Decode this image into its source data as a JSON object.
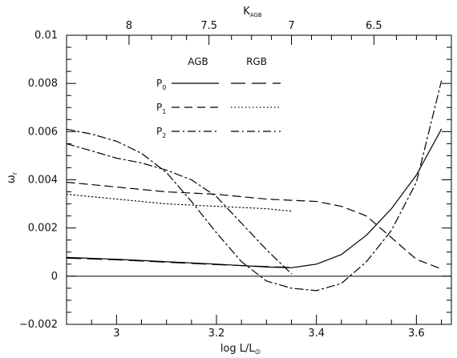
{
  "chart_data": {
    "type": "line",
    "xlabel": {
      "main": "log L/L",
      "sub": "⊙"
    },
    "ylabel": {
      "main": "ω",
      "sub": "r"
    },
    "top_axis_label": {
      "main": "K",
      "sub": "AGB"
    },
    "xlim": [
      2.9,
      3.67
    ],
    "ylim": [
      -0.002,
      0.01
    ],
    "x_ticks": [
      3.0,
      3.2,
      3.4,
      3.6
    ],
    "x_tick_labels": [
      "3",
      "3.2",
      "3.4",
      "3.6"
    ],
    "y_ticks": [
      -0.002,
      0.0,
      0.002,
      0.004,
      0.006,
      0.008,
      0.01
    ],
    "y_tick_labels": [
      "−0.002",
      "0",
      "0.002",
      "0.004",
      "0.006",
      "0.008",
      "0.01"
    ],
    "top_ticks": [
      {
        "x": 3.025,
        "label": "8"
      },
      {
        "x": 3.185,
        "label": "7.5"
      },
      {
        "x": 3.35,
        "label": "7"
      },
      {
        "x": 3.515,
        "label": "6.5"
      }
    ],
    "legend": {
      "column_titles": [
        "AGB",
        "RGB"
      ],
      "rows": [
        {
          "main": "P",
          "sub": "0"
        },
        {
          "main": "P",
          "sub": "1"
        },
        {
          "main": "P",
          "sub": "2"
        }
      ]
    },
    "zero_line": 0,
    "series": [
      {
        "group": "AGB",
        "mode": "P0",
        "dash": "solid",
        "points": [
          [
            2.9,
            0.00078
          ],
          [
            3.0,
            0.0007
          ],
          [
            3.1,
            0.0006
          ],
          [
            3.2,
            0.0005
          ],
          [
            3.3,
            0.00038
          ],
          [
            3.35,
            0.00035
          ],
          [
            3.4,
            0.0005
          ],
          [
            3.45,
            0.0009
          ],
          [
            3.5,
            0.0017
          ],
          [
            3.55,
            0.0028
          ],
          [
            3.6,
            0.0042
          ],
          [
            3.65,
            0.0061
          ]
        ]
      },
      {
        "group": "AGB",
        "mode": "P1",
        "dash": "long-dash",
        "points": [
          [
            2.9,
            0.0039
          ],
          [
            3.0,
            0.0037
          ],
          [
            3.1,
            0.0035
          ],
          [
            3.2,
            0.0034
          ],
          [
            3.3,
            0.0032
          ],
          [
            3.4,
            0.0031
          ],
          [
            3.45,
            0.0029
          ],
          [
            3.5,
            0.0025
          ],
          [
            3.55,
            0.0016
          ],
          [
            3.6,
            0.0007
          ],
          [
            3.65,
            0.0003
          ]
        ]
      },
      {
        "group": "AGB",
        "mode": "P2",
        "dash": "dash-dot",
        "points": [
          [
            2.9,
            0.0061
          ],
          [
            2.95,
            0.0059
          ],
          [
            3.0,
            0.0056
          ],
          [
            3.05,
            0.0051
          ],
          [
            3.1,
            0.0043
          ],
          [
            3.15,
            0.0031
          ],
          [
            3.2,
            0.0018
          ],
          [
            3.25,
            0.0006
          ],
          [
            3.3,
            -0.0002
          ],
          [
            3.35,
            -0.0005
          ],
          [
            3.4,
            -0.0006
          ],
          [
            3.45,
            -0.0003
          ],
          [
            3.5,
            0.0006
          ],
          [
            3.55,
            0.0019
          ],
          [
            3.6,
            0.0039
          ],
          [
            3.65,
            0.0081
          ]
        ]
      },
      {
        "group": "RGB",
        "mode": "P0",
        "dash": "long-dash-gap",
        "points": [
          [
            2.9,
            0.00075
          ],
          [
            3.0,
            0.00068
          ],
          [
            3.1,
            0.00058
          ],
          [
            3.2,
            0.00048
          ],
          [
            3.3,
            0.0004
          ],
          [
            3.35,
            0.00036
          ]
        ]
      },
      {
        "group": "RGB",
        "mode": "P1",
        "dash": "dotted",
        "points": [
          [
            2.9,
            0.0034
          ],
          [
            3.0,
            0.0032
          ],
          [
            3.1,
            0.003
          ],
          [
            3.2,
            0.0029
          ],
          [
            3.3,
            0.0028
          ],
          [
            3.35,
            0.0027
          ]
        ]
      },
      {
        "group": "RGB",
        "mode": "P2",
        "dash": "dash-dot",
        "points": [
          [
            2.9,
            0.0055
          ],
          [
            2.95,
            0.0052
          ],
          [
            3.0,
            0.0049
          ],
          [
            3.05,
            0.0047
          ],
          [
            3.1,
            0.0044
          ],
          [
            3.15,
            0.004
          ],
          [
            3.2,
            0.0033
          ],
          [
            3.25,
            0.0022
          ],
          [
            3.3,
            0.0011
          ],
          [
            3.35,
            0.0001
          ]
        ]
      }
    ]
  }
}
